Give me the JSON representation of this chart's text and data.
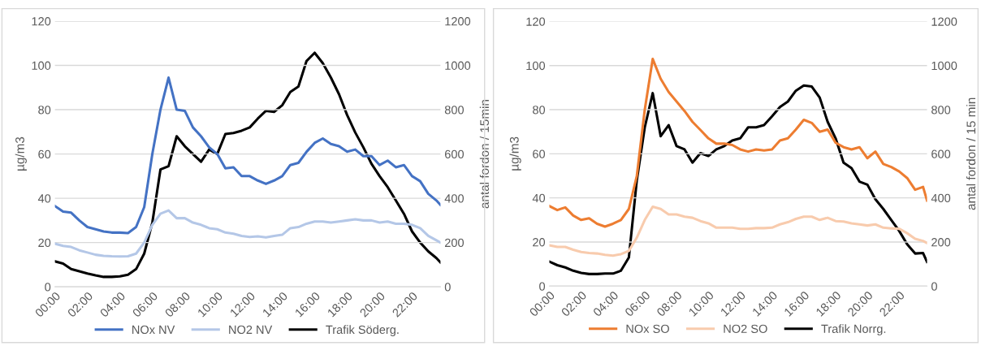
{
  "chart_data": [
    {
      "type": "line",
      "ylabel": "µg/m3",
      "y2label": "antal fordon / 15min",
      "x": [
        0,
        0.5,
        1,
        1.5,
        2,
        2.5,
        3,
        3.5,
        4,
        4.5,
        5,
        5.5,
        6,
        6.5,
        7,
        7.5,
        8,
        8.5,
        9,
        9.5,
        10,
        10.5,
        11,
        11.5,
        12,
        12.5,
        13,
        13.5,
        14,
        14.5,
        15,
        15.5,
        16,
        16.5,
        17,
        17.5,
        18,
        18.5,
        19,
        19.5,
        20,
        20.5,
        21,
        21.5,
        22,
        22.5,
        23,
        23.5,
        23.75
      ],
      "xlim": [
        0,
        23.75
      ],
      "xticks": [
        {
          "value": 0,
          "label": "00:00"
        },
        {
          "value": 2,
          "label": "02:00"
        },
        {
          "value": 4,
          "label": "04:00"
        },
        {
          "value": 6,
          "label": "06:00"
        },
        {
          "value": 8,
          "label": "08:00"
        },
        {
          "value": 10,
          "label": "10:00"
        },
        {
          "value": 12,
          "label": "12:00"
        },
        {
          "value": 14,
          "label": "14:00"
        },
        {
          "value": 16,
          "label": "16:00"
        },
        {
          "value": 18,
          "label": "18:00"
        },
        {
          "value": 20,
          "label": "20:00"
        },
        {
          "value": 22,
          "label": "22:00"
        }
      ],
      "ylim": [
        0,
        120
      ],
      "yticks": [
        0,
        20,
        40,
        60,
        80,
        100,
        120
      ],
      "y2lim": [
        0,
        1200
      ],
      "y2ticks": [
        0,
        200,
        400,
        600,
        800,
        1000,
        1200
      ],
      "grid": "y",
      "legend": "bottom",
      "line_style": "solid",
      "series": [
        {
          "name": "NOx NV",
          "color": "#4472c4",
          "values": [
            36.5,
            34,
            33.5,
            30,
            27,
            26,
            25,
            24.5,
            24.5,
            24.3,
            27,
            36,
            60,
            80,
            94.5,
            80,
            79.5,
            72,
            68,
            63,
            60,
            53.5,
            54,
            50,
            50,
            48,
            46.5,
            48,
            50,
            55,
            56,
            61,
            65,
            67,
            64.5,
            63.5,
            61,
            62,
            59,
            59,
            55,
            57,
            54,
            55,
            50,
            47.7,
            42,
            39,
            37
          ]
        },
        {
          "name": "NO2 NV",
          "color": "#b4c7e7",
          "values": [
            19.5,
            18.5,
            18,
            16.5,
            15.5,
            14.5,
            14,
            13.8,
            13.7,
            13.8,
            15,
            20,
            28,
            33,
            34.5,
            31,
            31,
            29,
            28,
            26.5,
            26,
            24.5,
            24,
            23,
            22.5,
            22.8,
            22.3,
            23,
            23.5,
            26.5,
            27,
            28.5,
            29.5,
            29.5,
            29,
            29.5,
            30,
            30.5,
            30,
            30,
            29,
            29.5,
            28.5,
            28.5,
            28,
            26.5,
            23,
            21,
            20
          ]
        },
        {
          "name": "Trafik Söderg.",
          "color": "#000000",
          "axis": "y2",
          "values": [
            115,
            105,
            80,
            70,
            60,
            52,
            45,
            45,
            47,
            55,
            80,
            150,
            290,
            530,
            545,
            680,
            635,
            600,
            565,
            620,
            600,
            690,
            695,
            705,
            720,
            760,
            795,
            790,
            820,
            880,
            905,
            1020,
            1057,
            1010,
            945,
            870,
            776,
            697,
            630,
            556,
            500,
            450,
            390,
            330,
            250,
            200,
            160,
            130,
            110
          ]
        }
      ]
    },
    {
      "type": "line",
      "ylabel": "µg/m3",
      "y2label": "antal fordon / 15 min",
      "x": [
        0,
        0.5,
        1,
        1.5,
        2,
        2.5,
        3,
        3.5,
        4,
        4.5,
        5,
        5.5,
        6,
        6.5,
        7,
        7.5,
        8,
        8.5,
        9,
        9.5,
        10,
        10.5,
        11,
        11.5,
        12,
        12.5,
        13,
        13.5,
        14,
        14.5,
        15,
        15.5,
        16,
        16.5,
        17,
        17.5,
        18,
        18.5,
        19,
        19.5,
        20,
        20.5,
        21,
        21.5,
        22,
        22.5,
        23,
        23.5,
        23.75
      ],
      "xlim": [
        0,
        23.75
      ],
      "xticks": [
        {
          "value": 0,
          "label": "00:00"
        },
        {
          "value": 2,
          "label": "02:00"
        },
        {
          "value": 4,
          "label": "04:00"
        },
        {
          "value": 6,
          "label": "06:00"
        },
        {
          "value": 8,
          "label": "08:00"
        },
        {
          "value": 10,
          "label": "10:00"
        },
        {
          "value": 12,
          "label": "12:00"
        },
        {
          "value": 14,
          "label": "14:00"
        },
        {
          "value": 16,
          "label": "16:00"
        },
        {
          "value": 18,
          "label": "18:00"
        },
        {
          "value": 20,
          "label": "20:00"
        },
        {
          "value": 22,
          "label": "22:00"
        }
      ],
      "ylim": [
        0,
        120
      ],
      "yticks": [
        0,
        20,
        40,
        60,
        80,
        100,
        120
      ],
      "y2lim": [
        0,
        1200
      ],
      "y2ticks": [
        0,
        200,
        400,
        600,
        800,
        1000,
        1200
      ],
      "grid": "y",
      "legend": "bottom",
      "line_style": "solid",
      "series": [
        {
          "name": "NOx SO",
          "color": "#ed7d31",
          "values": [
            36.3,
            34.5,
            35.7,
            32,
            30,
            30.8,
            28.3,
            27,
            28.3,
            30,
            35,
            50,
            80,
            103,
            94,
            88,
            83.7,
            79.4,
            74.5,
            70.8,
            67,
            64.6,
            64.6,
            64,
            62,
            61,
            62,
            61.5,
            62,
            66,
            67,
            71,
            75.4,
            74,
            70,
            71,
            65,
            63,
            62,
            63,
            58,
            61,
            55.4,
            54,
            52,
            49,
            43.7,
            45,
            38.8
          ]
        },
        {
          "name": "NO2 SO",
          "color": "#f8cbad",
          "values": [
            18.5,
            17.8,
            17.8,
            16.5,
            15.5,
            15,
            14.8,
            14.2,
            13.8,
            14.5,
            16,
            22,
            30,
            36,
            35,
            32.5,
            32.5,
            31.5,
            31,
            29.5,
            28.5,
            26.5,
            26.5,
            26.5,
            26,
            26,
            26.3,
            26.3,
            26.5,
            28,
            29,
            30.5,
            31.5,
            31.5,
            30,
            31,
            29.5,
            29.3,
            28.5,
            28,
            27.5,
            28,
            26.5,
            26.2,
            26,
            24,
            21.5,
            20.5,
            19.5
          ]
        },
        {
          "name": "Trafik Norrg.",
          "color": "#000000",
          "axis": "y2",
          "values": [
            111,
            95,
            85,
            70,
            60,
            55,
            55,
            57,
            57,
            70,
            130,
            480,
            720,
            875,
            680,
            730,
            635,
            620,
            560,
            603,
            590,
            620,
            635,
            660,
            670,
            720,
            720,
            730,
            770,
            812,
            837,
            886,
            910,
            905,
            855,
            745,
            670,
            560,
            535,
            474,
            460,
            394,
            350,
            300,
            250,
            190,
            148,
            150,
            110
          ]
        }
      ]
    }
  ]
}
